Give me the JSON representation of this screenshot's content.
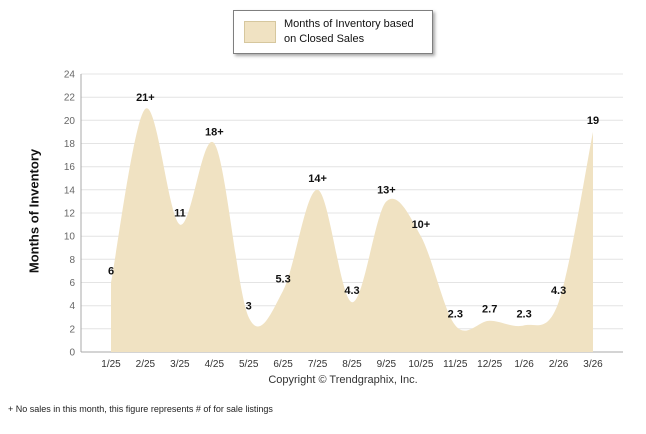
{
  "legend": {
    "label": "Months of Inventory based on Closed Sales"
  },
  "y_axis_title": "Months of Inventory",
  "copyright": "Copyright © Trendgraphix, Inc.",
  "footnote": "+ No sales in this month, this figure represents # of for sale listings",
  "colors": {
    "area_fill": "#F0E2C2",
    "grid": "#E4E4E4",
    "axis": "#A9A9A9",
    "data_label": "#111111",
    "y_tick": "#666666",
    "x_tick": "#333333"
  },
  "chart_data": {
    "type": "area",
    "title": "Months of Inventory based on Closed Sales",
    "xlabel": "",
    "ylabel": "Months of Inventory",
    "categories": [
      "1/25",
      "2/25",
      "3/25",
      "4/25",
      "5/25",
      "6/25",
      "7/25",
      "8/25",
      "9/25",
      "10/25",
      "11/25",
      "12/25",
      "1/26",
      "2/26",
      "3/26"
    ],
    "values": [
      6,
      21,
      11,
      18,
      3,
      5.3,
      14,
      4.3,
      13,
      10,
      2.3,
      2.7,
      2.3,
      4.3,
      19
    ],
    "labels": [
      "6",
      "21+",
      "11",
      "18+",
      "3",
      "5.3",
      "14+",
      "4.3",
      "13+",
      "10+",
      "2.3",
      "2.7",
      "2.3",
      "4.3",
      "19"
    ],
    "ylim": [
      0,
      24
    ],
    "ytick_step": 2,
    "grid": true,
    "legend_position": "top"
  }
}
